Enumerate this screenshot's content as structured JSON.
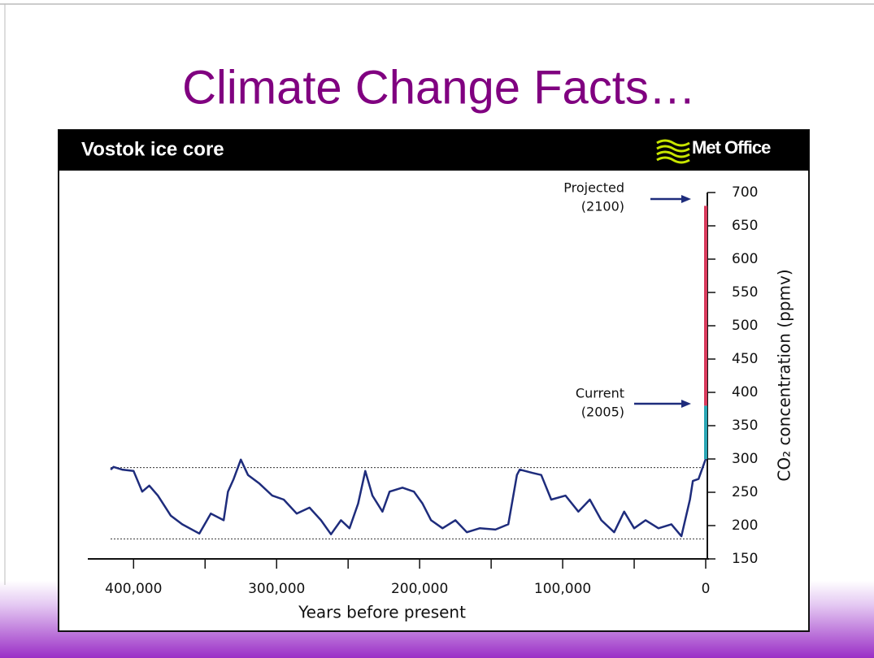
{
  "slide_title": "Climate Change Facts…",
  "chart_data": {
    "type": "line",
    "title": "Vostok ice core",
    "logo": "Met Office",
    "xlabel": "Years before present",
    "ylabel": "CO₂ concentration (ppmv)",
    "xlim": [
      432000,
      0
    ],
    "xticks": [
      {
        "value": 400000,
        "label": "400,000"
      },
      {
        "value": 300000,
        "label": "300,000"
      },
      {
        "value": 200000,
        "label": "200,000"
      },
      {
        "value": 100000,
        "label": "100,000"
      },
      0
    ],
    "xminor_ticks": [
      350000,
      250000,
      150000,
      50000
    ],
    "ylim": [
      150,
      700
    ],
    "yticks": [
      150,
      200,
      250,
      300,
      350,
      400,
      450,
      500,
      550,
      600,
      650,
      700
    ],
    "reference_lines": [
      287,
      180
    ],
    "annotations": [
      {
        "lines": [
          "Projected",
          "(2100)"
        ]
      },
      {
        "lines": [
          "Current",
          "(2005)"
        ]
      }
    ],
    "series": [
      {
        "color": "#1e2c7c",
        "x": [
          416000,
          414000,
          408000,
          400000,
          394000,
          389000,
          383000,
          374000,
          366000,
          354000,
          346000,
          337000,
          334000,
          330000,
          325000,
          320000,
          312000,
          303000,
          295000,
          286000,
          277000,
          269000,
          262000,
          255000,
          249000,
          243000,
          238000,
          233000,
          226000,
          221000,
          212000,
          204000,
          198000,
          192000,
          184000,
          175000,
          167000,
          158000,
          147000,
          138000,
          132000,
          130000,
          121000,
          115000,
          108000,
          98000,
          89000,
          81000,
          73000,
          64000,
          57000,
          50000,
          42000,
          33000,
          24000,
          17000,
          11000,
          9000,
          5000,
          2000,
          0
        ],
        "values": [
          284,
          288,
          284,
          282,
          251,
          260,
          245,
          215,
          202,
          188,
          218,
          208,
          251,
          270,
          299,
          276,
          263,
          245,
          239,
          218,
          227,
          208,
          187,
          208,
          196,
          233,
          282,
          245,
          221,
          251,
          257,
          251,
          233,
          208,
          196,
          208,
          190,
          196,
          194,
          202,
          276,
          284,
          279,
          276,
          239,
          245,
          221,
          239,
          208,
          190,
          221,
          196,
          208,
          196,
          202,
          184,
          239,
          267,
          270,
          288,
          300
        ]
      },
      {
        "color": "#2aa6b4",
        "x": [
          0,
          0
        ],
        "values": [
          300,
          380
        ]
      },
      {
        "color": "#d83a5c",
        "x": [
          0,
          0
        ],
        "values": [
          380,
          680
        ]
      }
    ]
  }
}
